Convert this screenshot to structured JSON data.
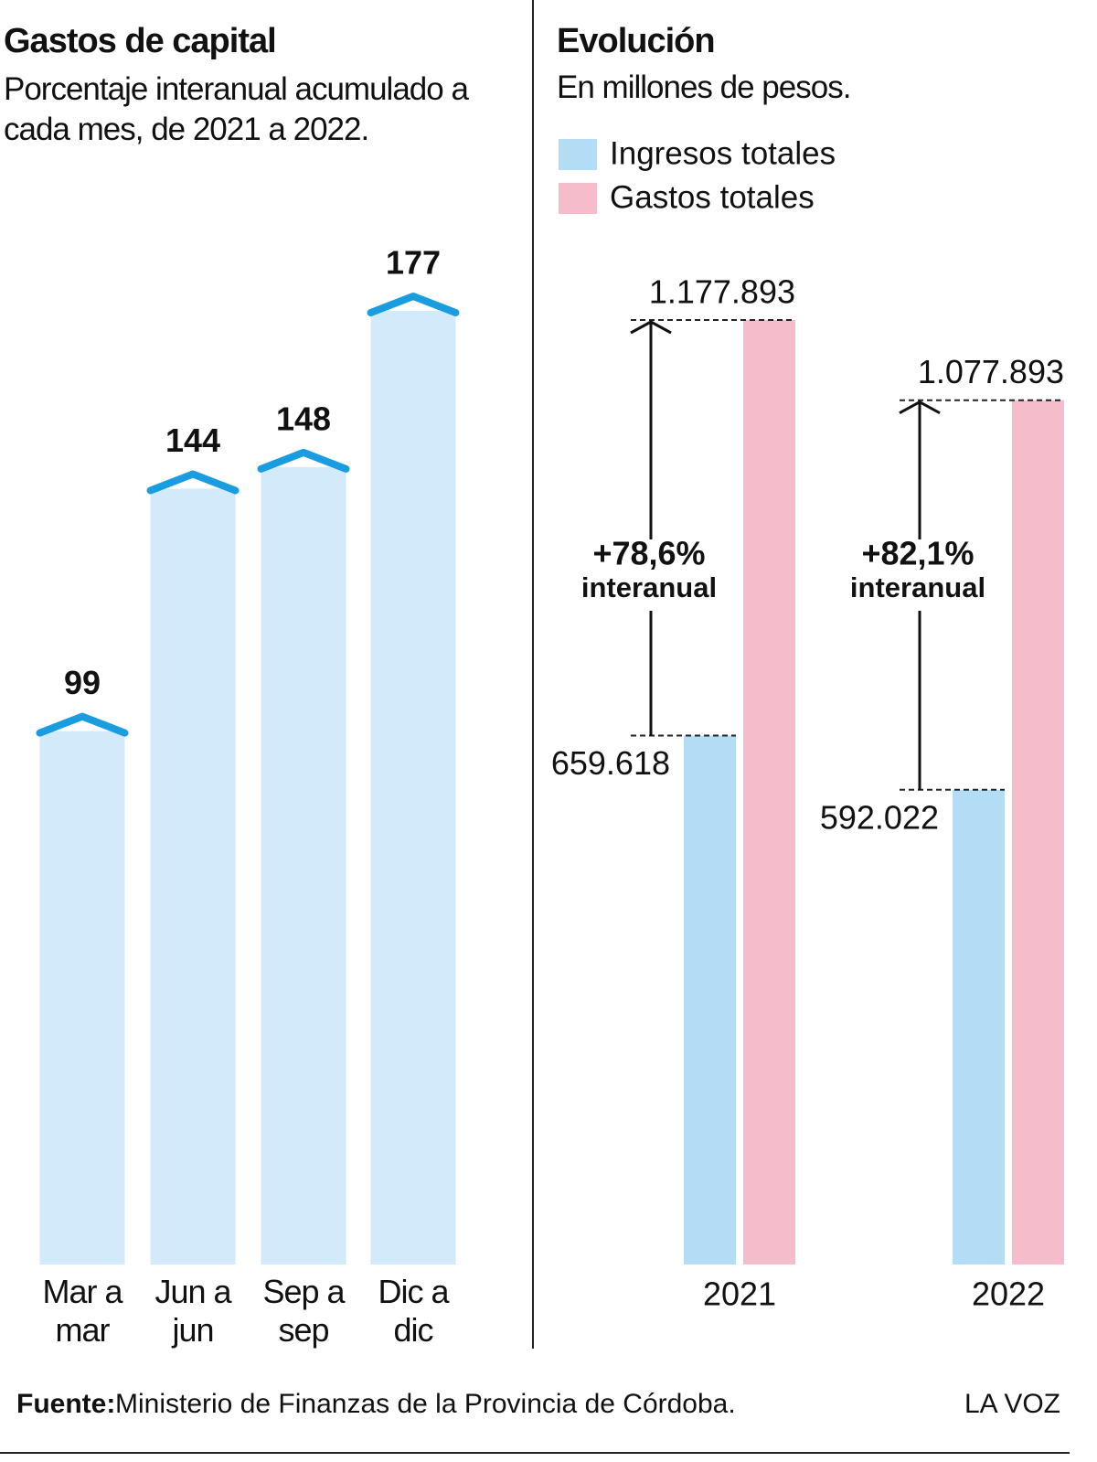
{
  "chart_data": [
    {
      "type": "bar",
      "title": "Gastos de capital",
      "subtitle": "Porcentaje interanual acumulado a cada mes, de 2021 a 2022.",
      "categories": [
        "Mar a mar",
        "Jun a jun",
        "Sep a sep",
        "Dic a dic"
      ],
      "values": [
        99,
        144,
        148,
        177
      ],
      "color": "#d2eaf9",
      "cap_color": "#1a9de0"
    },
    {
      "type": "grouped_bar",
      "title": "Evolución",
      "subtitle": "En millones de pesos.",
      "categories": [
        "2021",
        "2022"
      ],
      "series": [
        {
          "name": "Ingresos totales",
          "color": "#b3ddf5",
          "values": [
            659618,
            592022
          ],
          "value_labels": [
            "659.618",
            "592.022"
          ]
        },
        {
          "name": "Gastos totales",
          "color": "#f5bccb",
          "values": [
            1177893,
            1077893
          ],
          "value_labels": [
            "1.177.893",
            "1.077.893"
          ]
        }
      ],
      "annotations": [
        {
          "text": "+78,6%",
          "sub": "interanual"
        },
        {
          "text": "+82,1%",
          "sub": "interanual"
        }
      ]
    }
  ],
  "footer": {
    "source_label": "Fuente:",
    "source": "Ministerio de Finanzas de la Provincia de Córdoba.",
    "brand": "LA VOZ"
  }
}
